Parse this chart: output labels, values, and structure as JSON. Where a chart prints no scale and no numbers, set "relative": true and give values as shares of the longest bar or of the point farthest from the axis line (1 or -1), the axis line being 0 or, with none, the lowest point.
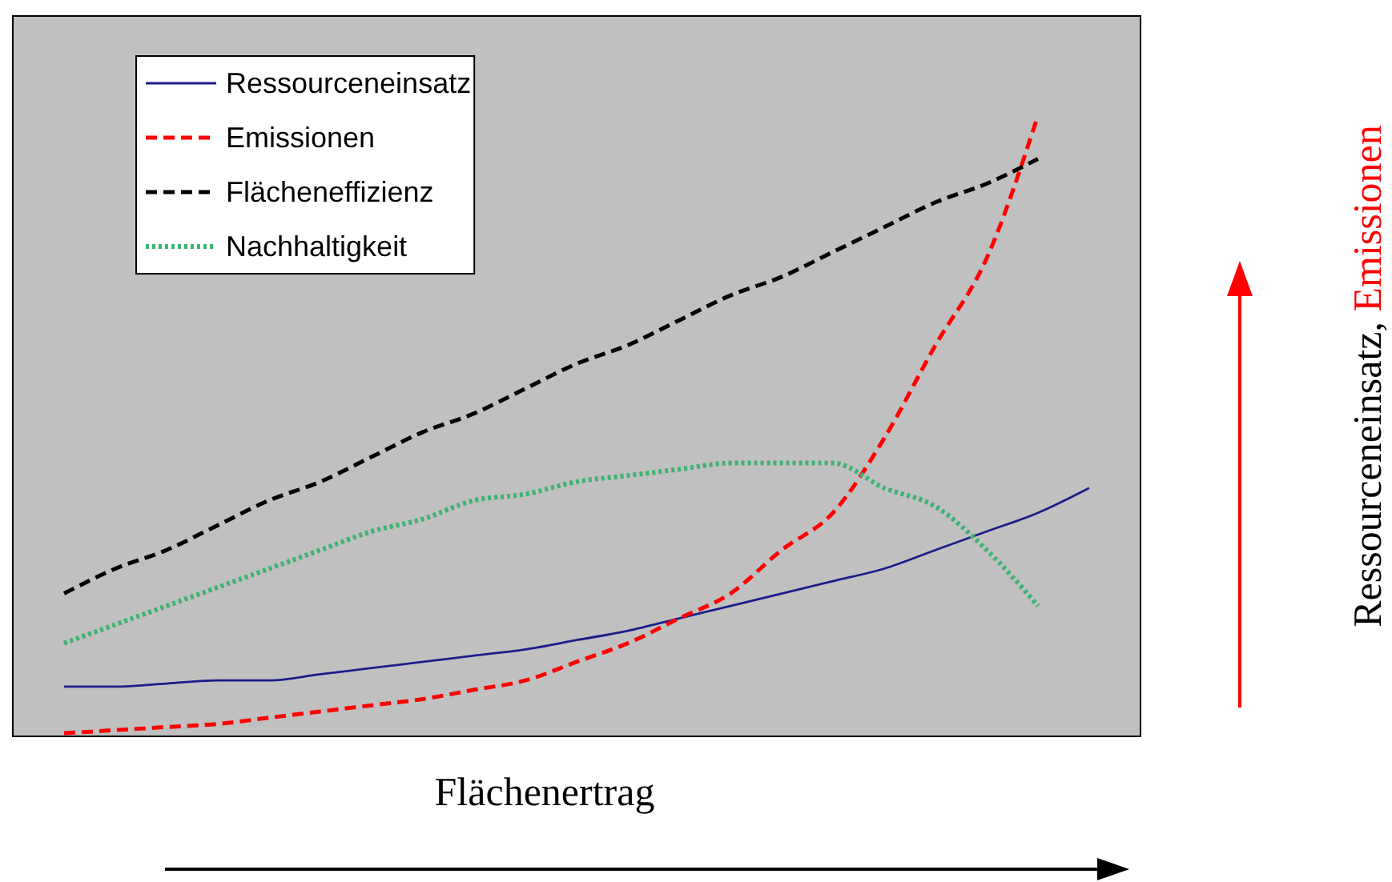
{
  "chart_data": {
    "type": "line",
    "relative": true,
    "xlabel": "Flächenertrag",
    "annotations": [
      "Ressourceneinsatz, Emissionen"
    ],
    "legend": "top left",
    "grid": false,
    "categories": [
      null,
      null,
      null,
      null,
      null,
      null,
      null,
      null,
      null,
      null,
      null,
      null,
      null,
      null,
      null,
      null,
      null,
      null,
      null,
      null,
      null
    ],
    "series": [
      {
        "name": "Ressourceneinsatz",
        "color": "#1c1c8c",
        "line_style": "solid",
        "values": [
          0.08,
          0.08,
          0.085,
          0.09,
          0.09,
          0.1,
          0.11,
          0.12,
          0.13,
          0.14,
          0.155,
          0.17,
          0.19,
          0.21,
          0.23,
          0.25,
          0.27,
          0.3,
          0.33,
          0.36,
          0.4
        ]
      },
      {
        "name": "Emissionen",
        "color": "#ff0000",
        "line_style": "dashed",
        "values": [
          0.005,
          0.01,
          0.015,
          0.02,
          0.03,
          0.04,
          0.05,
          0.06,
          0.075,
          0.09,
          0.12,
          0.15,
          0.19,
          0.23,
          0.3,
          0.36,
          0.48,
          0.63,
          0.77,
          1,
          null
        ]
      },
      {
        "name": "Flächeneffizienz",
        "color": "#000000",
        "line_style": "dashed",
        "values": [
          0.23,
          0.27,
          0.3,
          0.34,
          0.38,
          0.41,
          0.45,
          0.49,
          0.52,
          0.56,
          0.6,
          0.63,
          0.67,
          0.71,
          0.74,
          0.78,
          0.82,
          0.86,
          0.89,
          0.93,
          null
        ]
      },
      {
        "name": "Nachhaltigkeit",
        "color": "#3cb371",
        "line_style": "dotted",
        "values": [
          0.15,
          0.18,
          0.21,
          0.24,
          0.27,
          0.3,
          0.33,
          0.35,
          0.38,
          0.39,
          0.41,
          0.42,
          0.43,
          0.44,
          0.44,
          0.44,
          0.4,
          0.37,
          0.3,
          0.21,
          null
        ]
      }
    ]
  }
}
